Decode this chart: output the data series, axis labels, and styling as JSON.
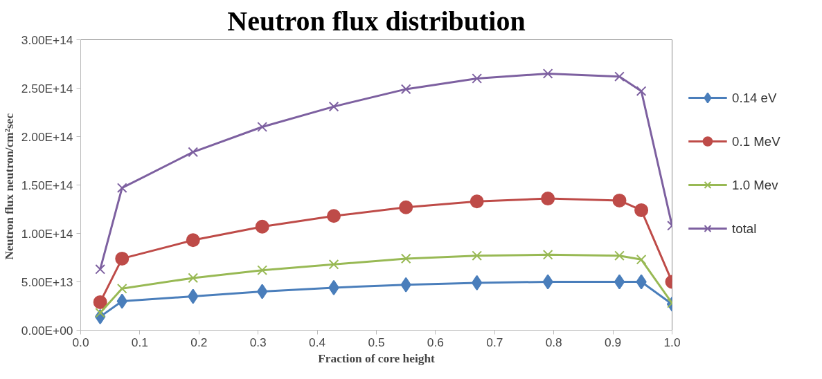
{
  "chart_data": {
    "type": "line",
    "title": "Neutron flux distribution",
    "xlabel": "Fraction of core height",
    "ylabel": "Neutron flux  neutron/cm²sec",
    "x": [
      0.033,
      0.07,
      0.19,
      0.307,
      0.428,
      0.55,
      0.67,
      0.79,
      0.911,
      0.948,
      1.0
    ],
    "series": [
      {
        "name": "0.14 eV",
        "color": "#4a7ebb",
        "marker": "diamond",
        "values": [
          14000000000000.0,
          30000000000000.0,
          35000000000000.0,
          40000000000000.0,
          44000000000000.0,
          47000000000000.0,
          49000000000000.0,
          50000000000000.0,
          50000000000000.0,
          50000000000000.0,
          27000000000000.0
        ]
      },
      {
        "name": "0.1 MeV",
        "color": "#be4b48",
        "marker": "circle",
        "values": [
          29000000000000.0,
          74000000000000.0,
          93000000000000.0,
          107000000000000.0,
          118000000000000.0,
          127000000000000.0,
          133000000000000.0,
          136000000000000.0,
          134000000000000.0,
          124000000000000.0,
          50000000000000.0
        ]
      },
      {
        "name": "1.0 Mev",
        "color": "#98b954",
        "marker": "cross",
        "values": [
          18000000000000.0,
          43000000000000.0,
          54000000000000.0,
          62000000000000.0,
          68000000000000.0,
          74000000000000.0,
          77000000000000.0,
          78000000000000.0,
          77000000000000.0,
          73000000000000.0,
          28000000000000.0
        ]
      },
      {
        "name": "total",
        "color": "#7d60a0",
        "marker": "cross",
        "values": [
          63000000000000.0,
          147000000000000.0,
          184000000000000.0,
          210000000000000.0,
          231000000000000.0,
          249000000000000.0,
          260000000000000.0,
          265000000000000.0,
          262000000000000.0,
          247000000000000.0,
          108000000000000.0
        ]
      }
    ],
    "xlim": [
      0,
      1
    ],
    "xticks": [
      {
        "value": 0,
        "label": "0.0"
      },
      0.1,
      0.2,
      0.3,
      0.4,
      0.5,
      0.6,
      0.7,
      0.8,
      0.9,
      {
        "value": 1,
        "label": "1.0"
      }
    ],
    "ylim": [
      0,
      300000000000000.0
    ],
    "yticks": [
      {
        "value": 0,
        "label": "0.00E+00"
      },
      {
        "value": 50000000000000.0,
        "label": "5.00E+13"
      },
      {
        "value": 100000000000000.0,
        "label": "1.00E+14"
      },
      {
        "value": 150000000000000.0,
        "label": "1.50E+14"
      },
      {
        "value": 200000000000000.0,
        "label": "2.00E+14"
      },
      {
        "value": 250000000000000.0,
        "label": "2.50E+14"
      },
      {
        "value": 300000000000000.0,
        "label": "3.00E+14"
      }
    ],
    "grid": false,
    "legend": "right",
    "line_style": "solid"
  }
}
